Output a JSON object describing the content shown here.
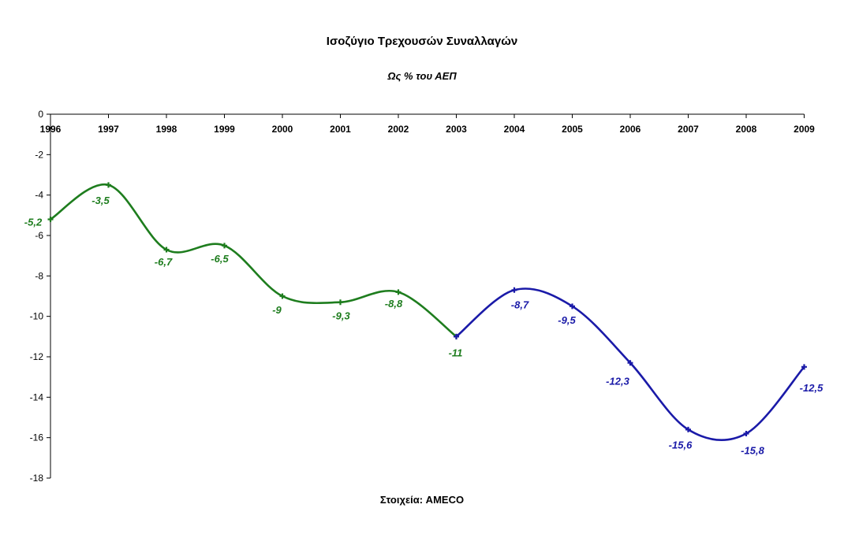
{
  "chart_data": {
    "type": "line",
    "title": "Ισοζύγιο Τρεχουσών Συναλλαγών",
    "subtitle": "Ως % του ΑΕΠ",
    "footnote": "Στοιχεία: AMECO",
    "x": [
      "1996",
      "1997",
      "1998",
      "1999",
      "2000",
      "2001",
      "2002",
      "2003",
      "2004",
      "2005",
      "2006",
      "2007",
      "2008",
      "2009"
    ],
    "ylim": [
      -18,
      0
    ],
    "yticks": [
      0,
      -2,
      -4,
      -6,
      -8,
      -10,
      -12,
      -14,
      -16,
      -18
    ],
    "grid": false,
    "legend": "none",
    "series": [
      {
        "x": [
          "1996",
          "1997",
          "1998",
          "1999",
          "2000",
          "2001",
          "2002",
          "2003"
        ],
        "values": [
          -5.2,
          -3.5,
          -6.7,
          -6.5,
          -9,
          -9.3,
          -8.8,
          -11
        ],
        "labels": [
          "-5,2",
          "-3,5",
          "-6,7",
          "-6,5",
          "-9",
          "-9,3",
          "-8,8",
          "-11"
        ],
        "color": "#1e7d1e"
      },
      {
        "x": [
          "2003",
          "2004",
          "2005",
          "2006",
          "2007",
          "2008",
          "2009"
        ],
        "values": [
          -11,
          -8.7,
          -9.5,
          -12.3,
          -15.6,
          -15.8,
          -12.5
        ],
        "labels": [
          "",
          "-8,7",
          "-9,5",
          "-12,3",
          "-15,6",
          "-15,8",
          "-12,5"
        ],
        "color": "#1a1aa8"
      }
    ]
  }
}
